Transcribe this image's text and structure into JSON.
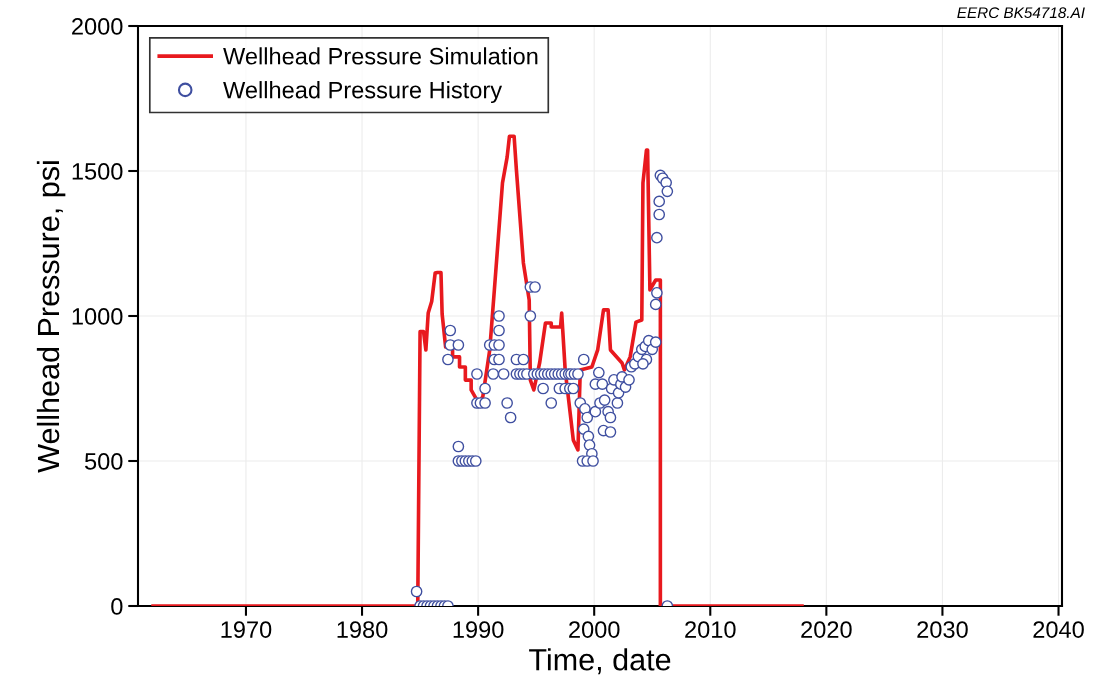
{
  "chart_data": {
    "type": "line",
    "xlabel": "Time, date",
    "ylabel": "Wellhead Pressure, psi",
    "annotations": [
      "EERC BK54718.AI"
    ],
    "xlim": [
      1960.7,
      2040.3
    ],
    "xticks": [
      1970,
      1980,
      1990,
      2000,
      2010,
      2020,
      2030,
      2040
    ],
    "ylim": [
      0,
      2000
    ],
    "yticks": [
      0,
      500,
      1000,
      1500,
      2000
    ],
    "grid": true,
    "legend": "top left",
    "series": [
      {
        "name": "Wellhead Pressure Simulation",
        "color": "#e8191e",
        "marker": "none",
        "line_style": "solid",
        "x": [
          1962.0,
          1984.8,
          1985.0,
          1985.3,
          1985.5,
          1985.7,
          1986.0,
          1986.3,
          1986.5,
          1986.8,
          1986.9,
          1987.2,
          1987.8,
          1987.8,
          1988.4,
          1988.4,
          1988.9,
          1988.9,
          1989.4,
          1989.4,
          1990.0,
          1990.4,
          1991.0,
          1991.4,
          1992.1,
          1992.5,
          1992.7,
          1993.1,
          1993.3,
          1993.9,
          1994.4,
          1994.5,
          1994.8,
          1995.3,
          1995.8,
          1996.3,
          1996.3,
          1997.1,
          1997.2,
          1997.5,
          1998.2,
          1998.6,
          1998.8,
          1999.8,
          2000.3,
          2000.8,
          2001.2,
          2001.4,
          2002.4,
          2002.6,
          2003.1,
          2003.6,
          2004.1,
          2004.2,
          2004.5,
          2004.6,
          2004.8,
          2005.3,
          2005.7,
          2005.7,
          2017.9
        ],
        "values": [
          0,
          0,
          946,
          946,
          883,
          1010,
          1050,
          1148,
          1150,
          1150,
          1007,
          893,
          893,
          859,
          859,
          824,
          824,
          779,
          779,
          745,
          703,
          721,
          883,
          1090,
          1459,
          1548,
          1620,
          1620,
          1503,
          1183,
          1055,
          779,
          745,
          838,
          976,
          976,
          962,
          962,
          1010,
          814,
          572,
          538,
          814,
          824,
          883,
          1021,
          1021,
          883,
          838,
          814,
          859,
          979,
          986,
          1459,
          1572,
          1572,
          1090,
          1124,
          1124,
          0,
          0
        ]
      },
      {
        "name": "Wellhead Pressure History",
        "type": "scatter",
        "color": "#3f4fa0",
        "marker": "circle",
        "x": [
          1984.7,
          1985.0,
          1985.3,
          1985.6,
          1985.9,
          1986.2,
          1986.5,
          1986.8,
          1987.1,
          1987.4,
          1987.6,
          1987.6,
          1988.3,
          1987.4,
          1988.3,
          1988.3,
          1988.6,
          1988.9,
          1989.2,
          1989.5,
          1989.8,
          1989.9,
          1989.9,
          1990.2,
          1990.6,
          1990.6,
          1991.3,
          1991.0,
          1991.4,
          1991.8,
          1991.4,
          1991.8,
          1991.8,
          1991.8,
          1992.2,
          1992.5,
          1992.8,
          1993.3,
          1993.6,
          1993.9,
          1994.2,
          1993.3,
          1993.9,
          1994.5,
          1994.5,
          1994.9,
          1994.8,
          1995.1,
          1995.4,
          1995.7,
          1996.0,
          1996.3,
          1996.6,
          1996.9,
          1997.2,
          1997.5,
          1997.8,
          1995.6,
          1996.3,
          1997.0,
          1997.5,
          1997.9,
          1998.0,
          1998.3,
          1998.6,
          1998.2,
          1999.1,
          1998.8,
          1999.2,
          1999.4,
          1999.1,
          1999.5,
          1999.6,
          1999.8,
          1999.0,
          1999.4,
          1999.9,
          2000.1,
          2000.1,
          2000.4,
          2000.7,
          2000.8,
          2001.4,
          2000.5,
          2000.9,
          2001.2,
          2001.4,
          2001.5,
          2001.7,
          2002.0,
          2002.1,
          2002.3,
          2002.4,
          2002.7,
          2003.0,
          2003.2,
          2003.5,
          2003.8,
          2004.1,
          2004.4,
          2004.7,
          2005.0,
          2005.3,
          2004.5,
          2004.2,
          2005.3,
          2005.4,
          2005.4,
          2005.6,
          2005.6,
          2005.7,
          2005.9,
          2006.2,
          2006.3,
          2006.3
        ],
        "values": [
          50,
          0,
          0,
          0,
          0,
          0,
          0,
          0,
          0,
          0,
          950,
          900,
          900,
          850,
          550,
          500,
          500,
          500,
          500,
          500,
          500,
          800,
          700,
          700,
          700,
          750,
          800,
          900,
          900,
          900,
          850,
          850,
          950,
          1000,
          800,
          700,
          650,
          800,
          800,
          800,
          800,
          850,
          850,
          1000,
          1100,
          1100,
          800,
          800,
          800,
          800,
          800,
          800,
          800,
          800,
          800,
          800,
          800,
          750,
          700,
          750,
          750,
          750,
          800,
          800,
          800,
          750,
          850,
          700,
          680,
          650,
          610,
          585,
          555,
          525,
          500,
          500,
          500,
          765,
          670,
          805,
          765,
          605,
          600,
          700,
          710,
          670,
          650,
          750,
          780,
          700,
          735,
          765,
          790,
          755,
          780,
          825,
          835,
          860,
          885,
          895,
          915,
          885,
          910,
          850,
          835,
          1040,
          1080,
          1270,
          1350,
          1395,
          1485,
          1475,
          1460,
          1430,
          0
        ]
      }
    ]
  }
}
